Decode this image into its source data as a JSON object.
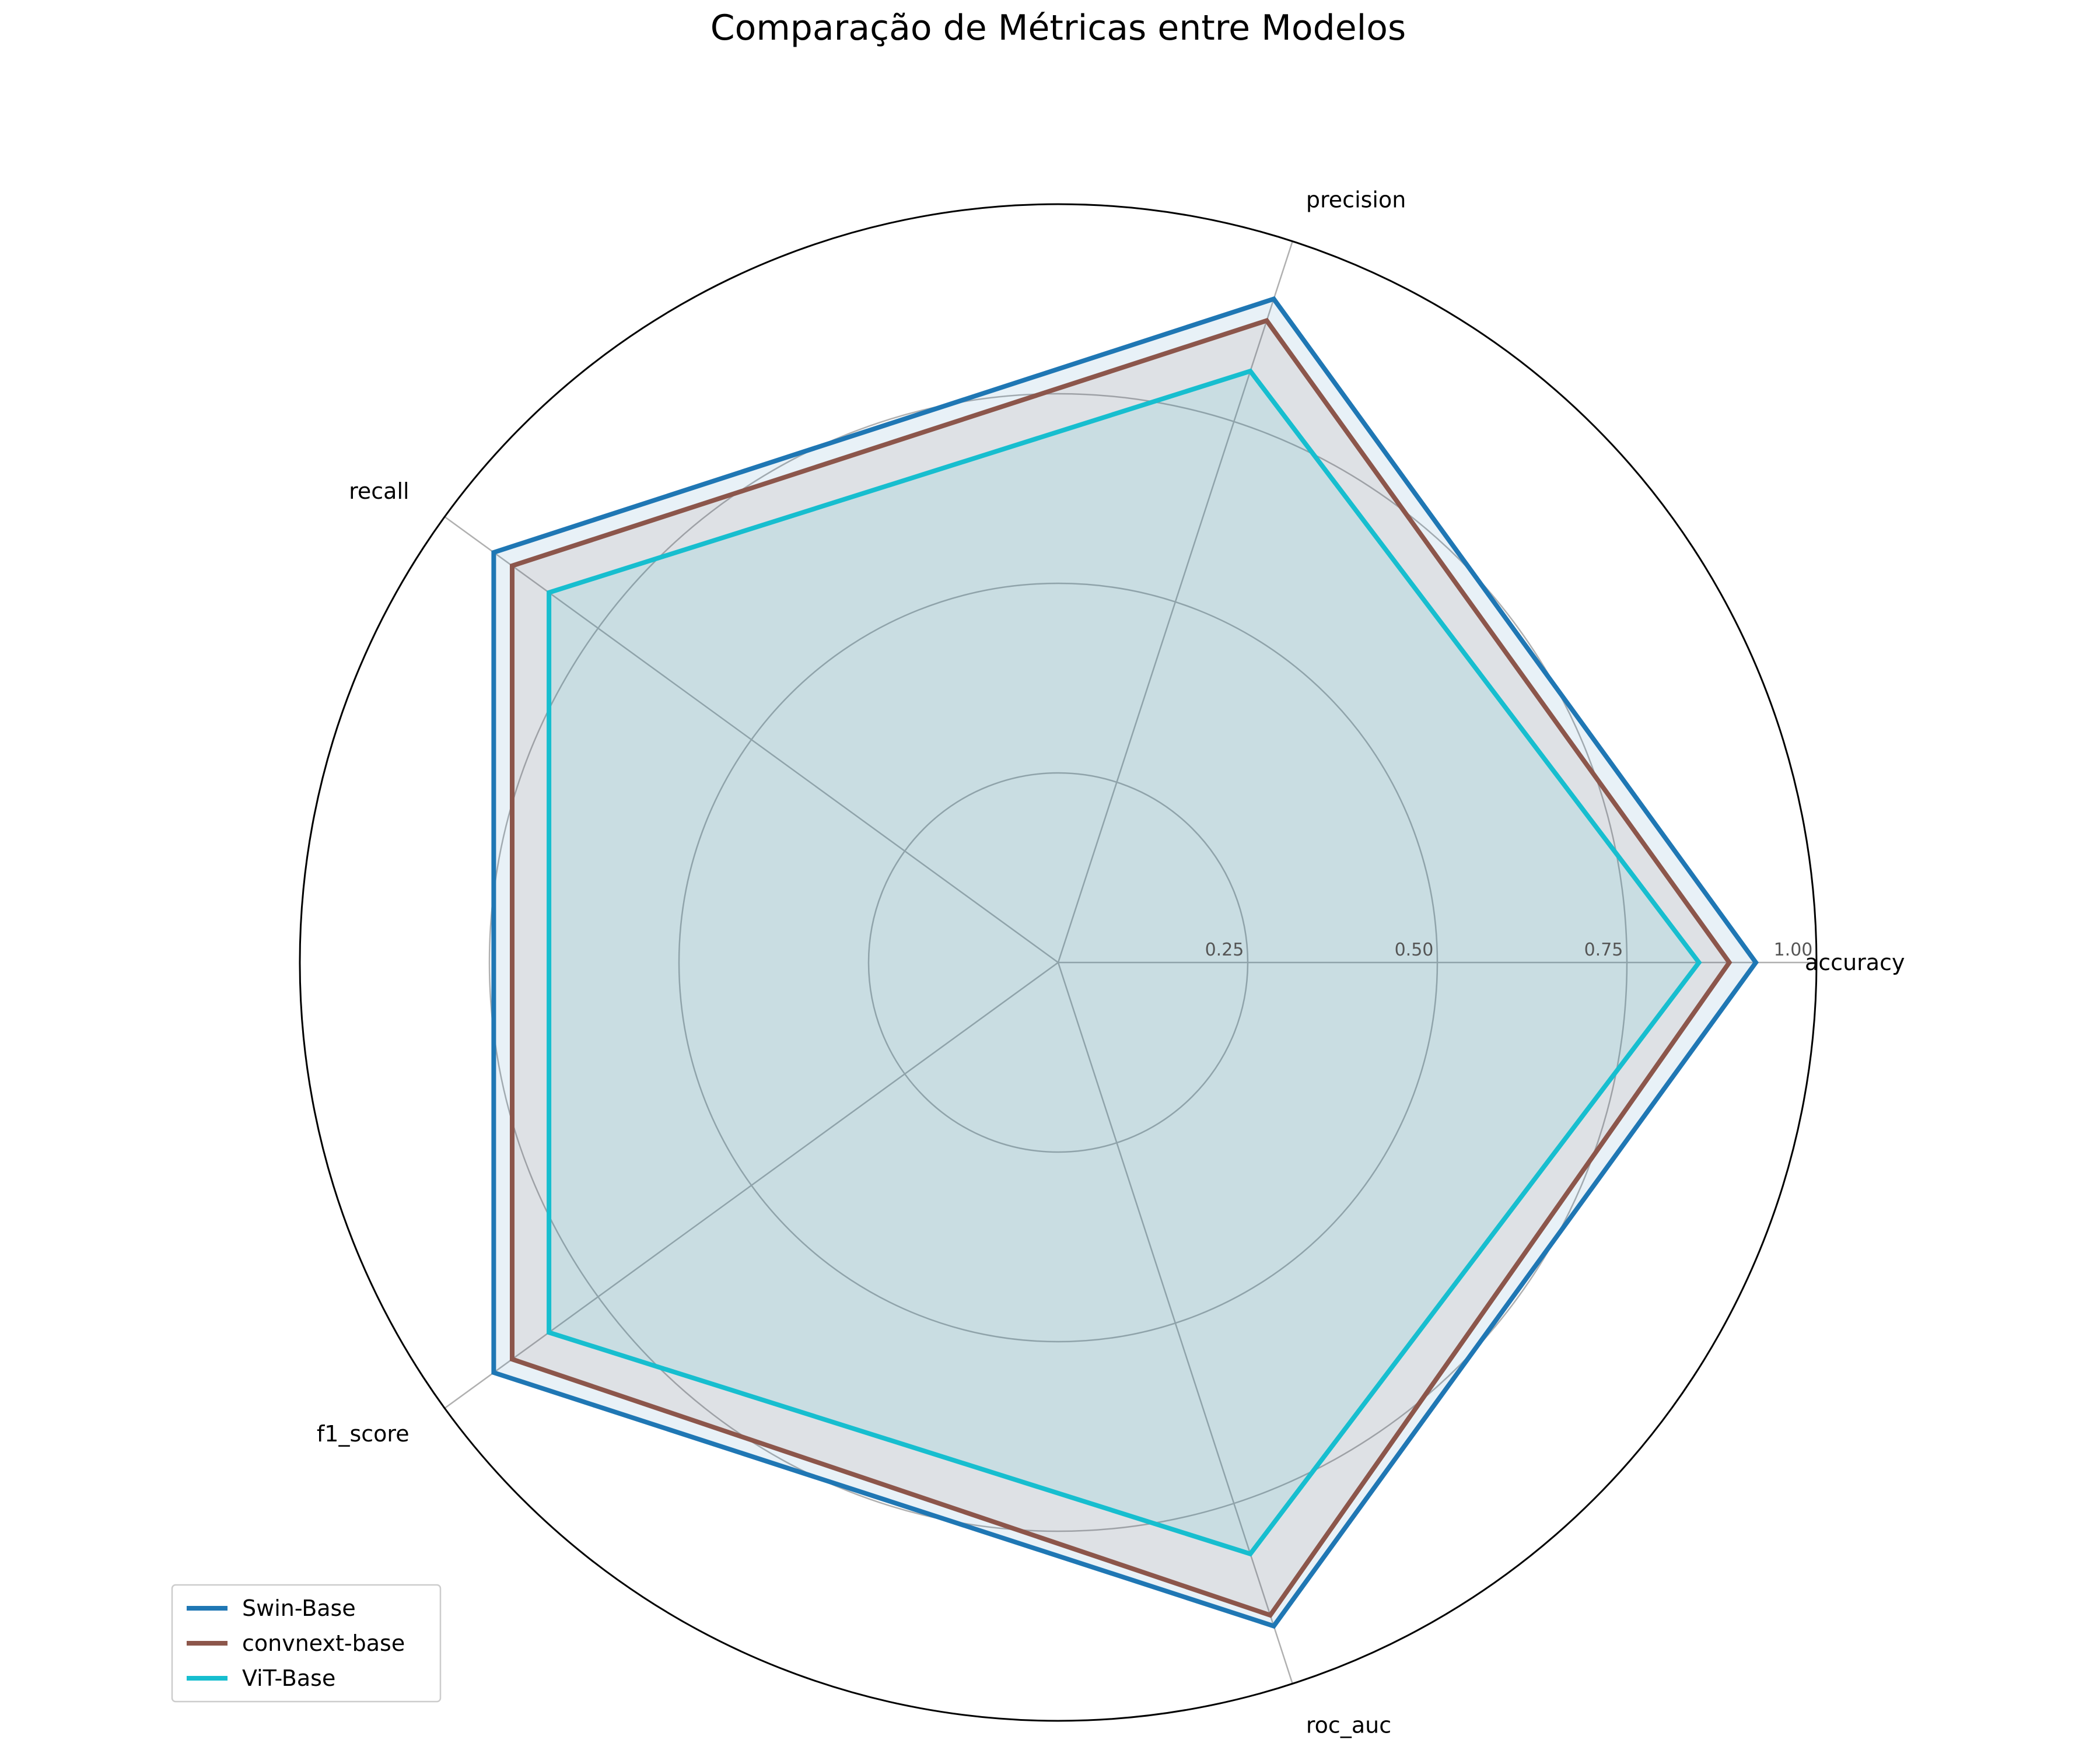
{
  "chart_data": {
    "type": "radar",
    "title": "Comparação de Métricas entre Modelos",
    "axes": [
      "accuracy",
      "precision",
      "recall",
      "f1_score",
      "roc_auc"
    ],
    "rlim": [
      0,
      1.0
    ],
    "ticks": [
      "0.25",
      "0.50",
      "0.75",
      "1.00"
    ],
    "tick_values": [
      0.25,
      0.5,
      0.75,
      1.0
    ],
    "grid": true,
    "legend_position": "lower-left",
    "series": [
      {
        "name": "Swin-Base",
        "color": "#1f77b4",
        "values": [
          0.92,
          0.92,
          0.92,
          0.92,
          0.92
        ]
      },
      {
        "name": "convnext-base",
        "color": "#8c564b",
        "values": [
          0.885,
          0.89,
          0.89,
          0.89,
          0.905
        ]
      },
      {
        "name": "ViT-Base",
        "color": "#17becf",
        "values": [
          0.845,
          0.82,
          0.83,
          0.83,
          0.82
        ]
      }
    ],
    "fill_opacity": 0.1
  }
}
